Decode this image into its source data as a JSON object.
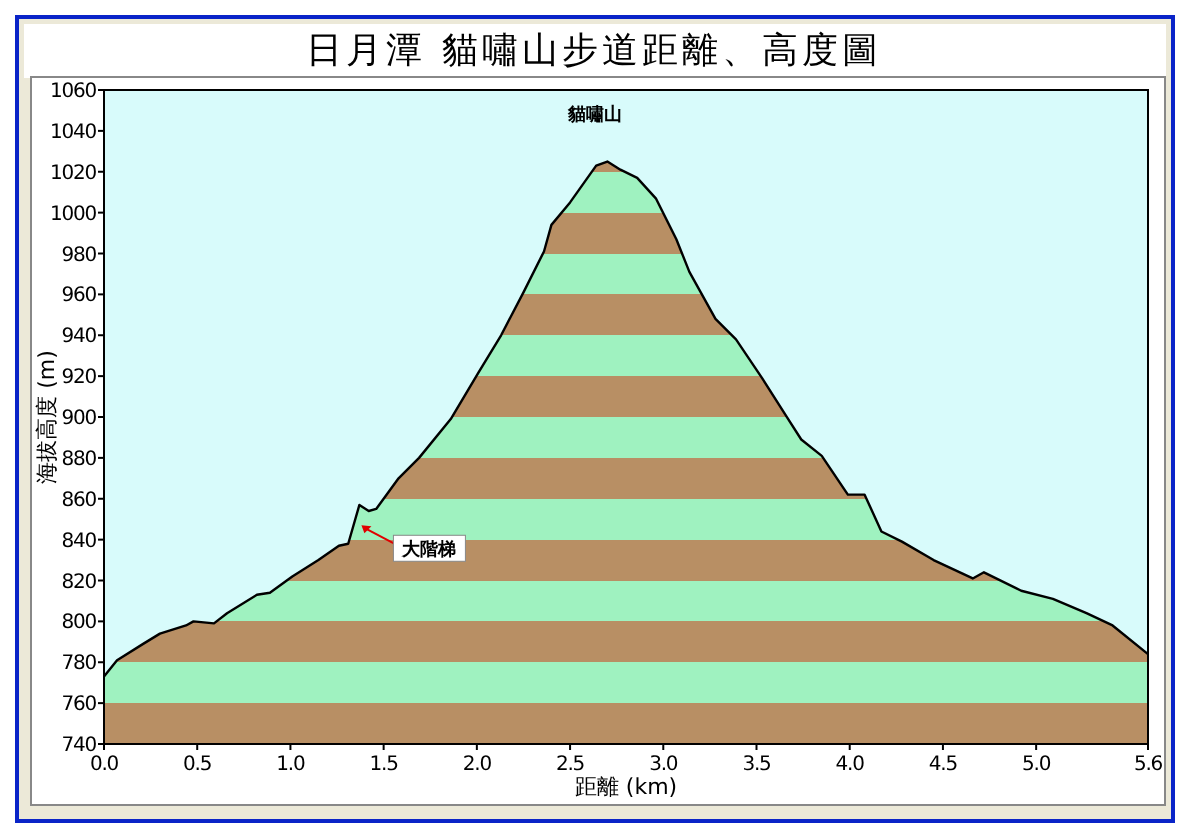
{
  "chart_data": {
    "type": "area",
    "title": "日月潭  貓嘯山步道距離、高度圖",
    "xlabel": "距離  (km)",
    "ylabel": "海拔高度 (m)",
    "x": [
      0,
      0.07,
      0.21,
      0.3,
      0.44,
      0.48,
      0.59,
      0.66,
      0.82,
      0.89,
      1.01,
      1.15,
      1.26,
      1.31,
      1.37,
      1.42,
      1.46,
      1.58,
      1.69,
      1.86,
      2.01,
      2.13,
      2.25,
      2.36,
      2.4,
      2.5,
      2.64,
      2.7,
      2.77,
      2.86,
      2.96,
      3.07,
      3.14,
      3.28,
      3.39,
      3.53,
      3.67,
      3.74,
      3.85,
      3.99,
      4.08,
      4.17,
      4.28,
      4.45,
      4.66,
      4.72,
      4.92,
      5.09,
      5.27,
      5.41,
      5.6
    ],
    "series": [
      {
        "color": "#9ff2c0",
        "values": [
          773,
          781,
          789,
          794,
          798,
          800,
          799,
          804,
          813,
          814,
          822,
          830,
          837,
          838,
          857,
          854,
          855,
          870,
          880,
          899,
          922,
          940,
          961,
          981,
          994,
          1005,
          1023,
          1025,
          1021,
          1017,
          1007,
          987,
          971,
          948,
          938,
          919,
          899,
          889,
          881,
          862,
          862,
          844,
          839,
          830,
          821,
          824,
          815,
          811,
          804,
          798,
          784
        ]
      }
    ],
    "annotations": [
      {
        "text": "貓嘯山",
        "x": 2.7,
        "y": 1025
      },
      {
        "text": "大階梯",
        "x": 1.37,
        "y": 848
      }
    ],
    "xlim": [
      0,
      5.6
    ],
    "ylim": [
      740,
      1060
    ],
    "xticks": [
      {
        "value": 0,
        "label": "0.0"
      },
      {
        "value": 0.5,
        "label": "0.5"
      },
      {
        "value": 1,
        "label": "1.0"
      },
      {
        "value": 1.5,
        "label": "1.5"
      },
      {
        "value": 2,
        "label": "2.0"
      },
      {
        "value": 2.5,
        "label": "2.5"
      },
      {
        "value": 3,
        "label": "3.0"
      },
      {
        "value": 3.5,
        "label": "3.5"
      },
      {
        "value": 4,
        "label": "4.0"
      },
      {
        "value": 4.5,
        "label": "4.5"
      },
      {
        "value": 5,
        "label": "5.0"
      },
      {
        "value": 5.6,
        "label": "5.6"
      }
    ],
    "yticks": [
      740,
      760,
      780,
      800,
      820,
      840,
      860,
      880,
      900,
      920,
      940,
      960,
      980,
      1000,
      1020,
      1040,
      1060
    ]
  }
}
